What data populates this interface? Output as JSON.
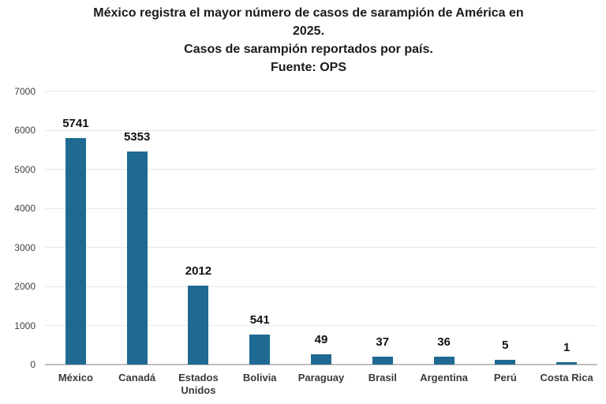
{
  "chart_data": {
    "type": "bar",
    "title": "México registra el mayor número de casos de sarampión de América en 2025.",
    "title_lines": [
      "México registra el mayor número de casos de sarampión de América en",
      "2025."
    ],
    "subtitle": "Casos de sarampión reportados por país.",
    "source": "Fuente: OPS",
    "categories": [
      "México",
      "Canadá",
      "Estados Unidos",
      "Bolivia",
      "Paraguay",
      "Brasil",
      "Argentina",
      "Perú",
      "Costa Rica"
    ],
    "values": [
      5741,
      5353,
      2012,
      541,
      49,
      37,
      36,
      5,
      1
    ],
    "value_labels": [
      "5741",
      "5353",
      "2012",
      "541",
      "49",
      "37",
      "36",
      "5",
      "1"
    ],
    "yticks": [
      0,
      1000,
      2000,
      3000,
      4000,
      5000,
      6000,
      7000
    ],
    "ylim": [
      0,
      7000
    ],
    "grid": "horizontal",
    "legend": "none",
    "bar_color": "#1e6a93",
    "grid_color": "#e8e8e8",
    "axis_color": "#bdbdbd"
  }
}
